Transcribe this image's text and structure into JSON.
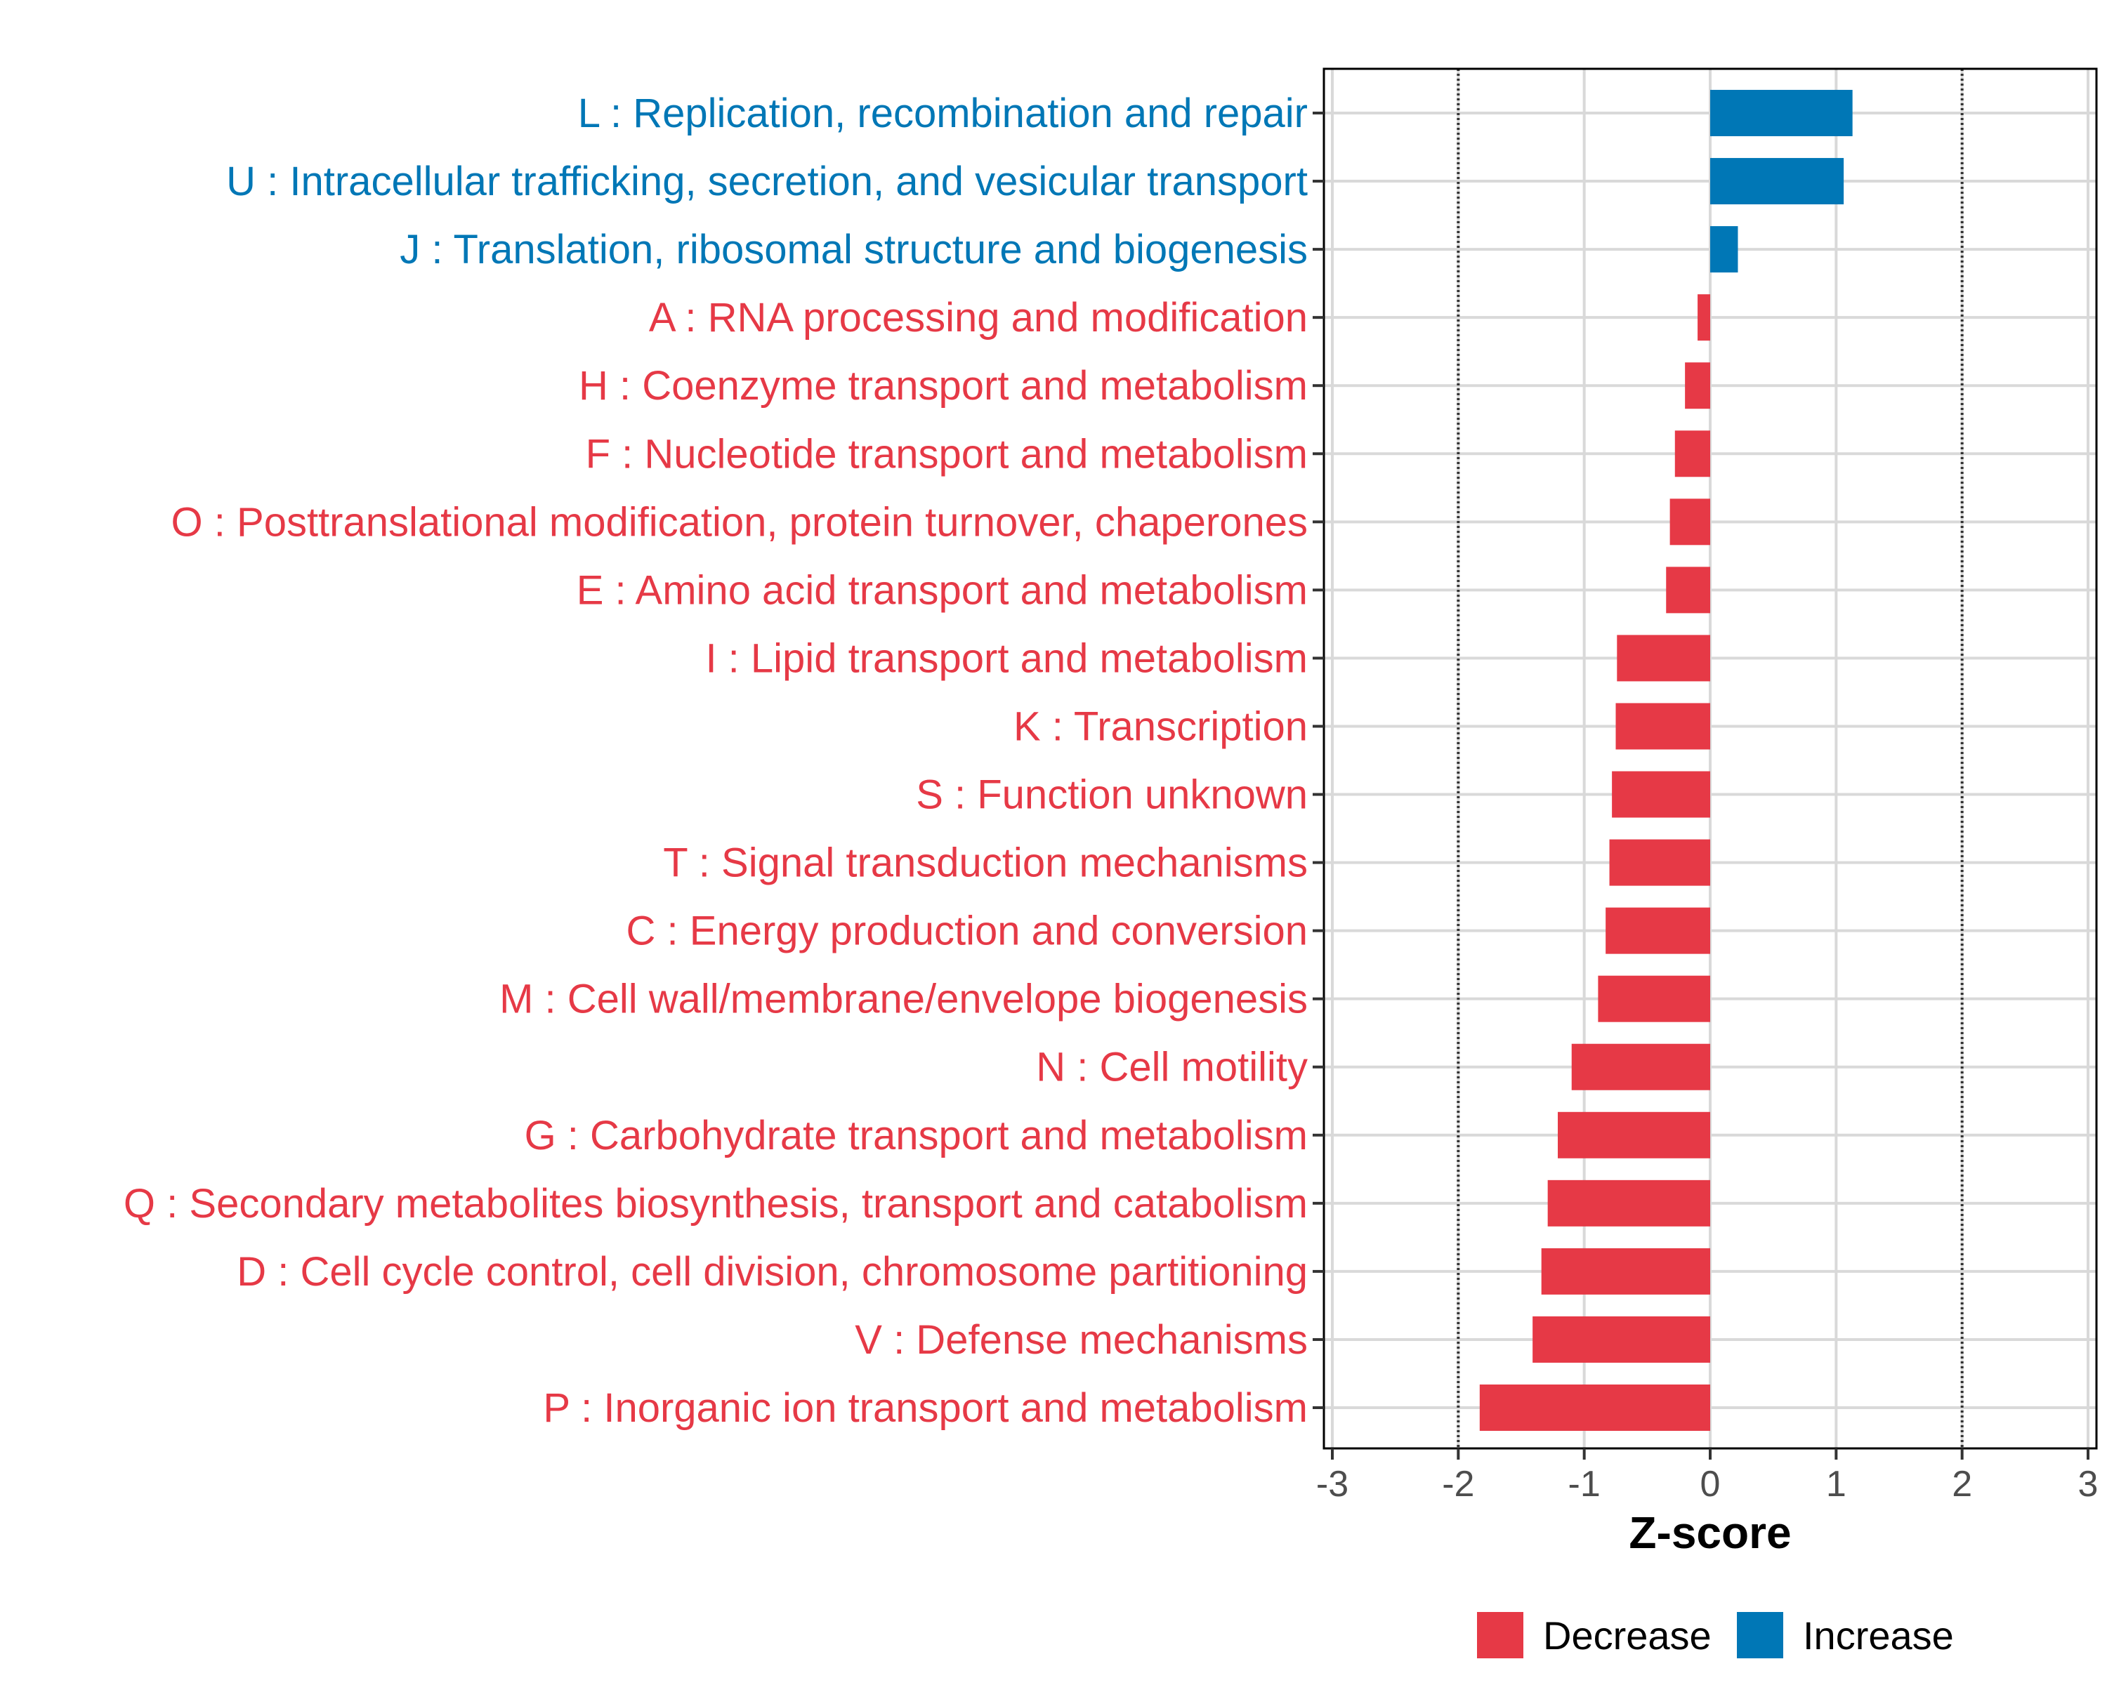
{
  "chart_data": {
    "type": "bar",
    "orientation": "horizontal",
    "xlabel": "Z-score",
    "xlim": [
      -3,
      3
    ],
    "xticks": [
      -3,
      -2,
      -1,
      0,
      1,
      2,
      3
    ],
    "tick_labels": [
      "-3",
      "-2",
      "-1",
      "0",
      "1",
      "2",
      "3"
    ],
    "reference_lines": [
      -2,
      2
    ],
    "colors": {
      "Decrease": "#E63946",
      "Increase": "#0077B6"
    },
    "legend": [
      {
        "name": "Decrease",
        "label": "Decrease"
      },
      {
        "name": "Increase",
        "label": "Increase"
      }
    ],
    "legend_position": "bottom",
    "bars": [
      {
        "label": "L : Replication, recombination and repair",
        "value": 1.13,
        "direction": "Increase"
      },
      {
        "label": "U : Intracellular trafficking, secretion, and vesicular transport",
        "value": 1.06,
        "direction": "Increase"
      },
      {
        "label": "J : Translation, ribosomal structure and biogenesis",
        "value": 0.22,
        "direction": "Increase"
      },
      {
        "label": "A : RNA processing and modification",
        "value": -0.1,
        "direction": "Decrease"
      },
      {
        "label": "H : Coenzyme transport and metabolism",
        "value": -0.2,
        "direction": "Decrease"
      },
      {
        "label": "F : Nucleotide transport and metabolism",
        "value": -0.28,
        "direction": "Decrease"
      },
      {
        "label": "O : Posttranslational modification, protein turnover, chaperones",
        "value": -0.32,
        "direction": "Decrease"
      },
      {
        "label": "E : Amino acid transport and metabolism",
        "value": -0.35,
        "direction": "Decrease"
      },
      {
        "label": "I : Lipid transport and metabolism",
        "value": -0.74,
        "direction": "Decrease"
      },
      {
        "label": "K : Transcription",
        "value": -0.75,
        "direction": "Decrease"
      },
      {
        "label": "S : Function unknown",
        "value": -0.78,
        "direction": "Decrease"
      },
      {
        "label": "T : Signal transduction mechanisms",
        "value": -0.8,
        "direction": "Decrease"
      },
      {
        "label": "C : Energy production and conversion",
        "value": -0.83,
        "direction": "Decrease"
      },
      {
        "label": "M : Cell wall/membrane/envelope biogenesis",
        "value": -0.89,
        "direction": "Decrease"
      },
      {
        "label": "N : Cell motility",
        "value": -1.1,
        "direction": "Decrease"
      },
      {
        "label": "G : Carbohydrate transport and metabolism",
        "value": -1.21,
        "direction": "Decrease"
      },
      {
        "label": "Q : Secondary metabolites biosynthesis, transport and catabolism",
        "value": -1.29,
        "direction": "Decrease"
      },
      {
        "label": "D : Cell cycle control, cell division, chromosome partitioning",
        "value": -1.34,
        "direction": "Decrease"
      },
      {
        "label": "V : Defense mechanisms",
        "value": -1.41,
        "direction": "Decrease"
      },
      {
        "label": "P : Inorganic ion transport and metabolism",
        "value": -1.83,
        "direction": "Decrease"
      }
    ]
  }
}
